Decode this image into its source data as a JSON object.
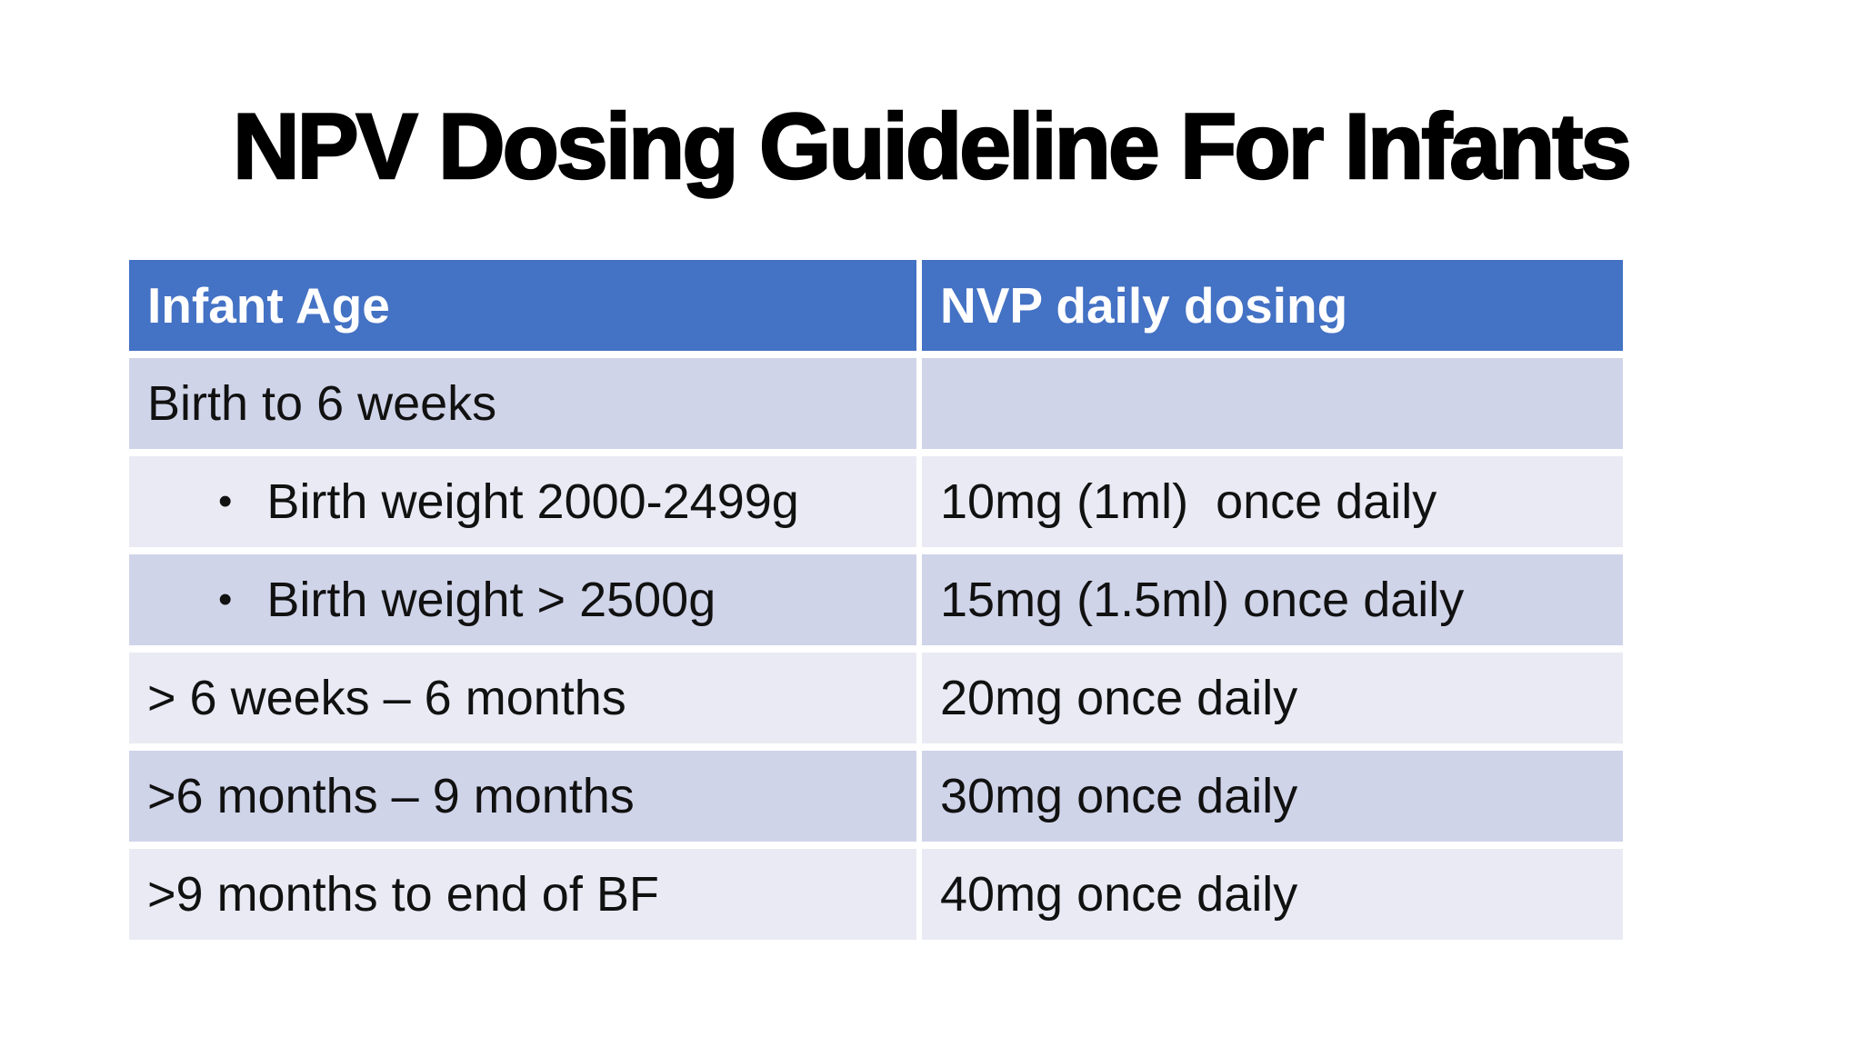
{
  "title": "NPV Dosing Guideline For Infants",
  "colors": {
    "header_bg": "#4472C4",
    "header_text": "#FFFFFF",
    "band_dark": "#D0D4E9",
    "band_light": "#E9EAF4",
    "body_text": "#111111",
    "title_text": "#000000",
    "slide_bg": "#FFFFFF"
  },
  "table": {
    "bullet_char": "•",
    "columns": [
      {
        "label": "Infant Age"
      },
      {
        "label": "NVP daily dosing"
      }
    ],
    "rows": [
      {
        "age": "Birth to 6 weeks",
        "dose": ""
      },
      {
        "age": "Birth weight 2000-2499g",
        "dose": "10mg (1ml)  once daily"
      },
      {
        "age": "Birth weight > 2500g",
        "dose": "15mg (1.5ml) once daily"
      },
      {
        "age": "> 6 weeks – 6 months",
        "dose": "20mg once daily"
      },
      {
        "age": ">6 months – 9 months",
        "dose": "30mg once daily"
      },
      {
        "age": ">9 months to end of BF",
        "dose": "40mg once daily"
      }
    ]
  }
}
